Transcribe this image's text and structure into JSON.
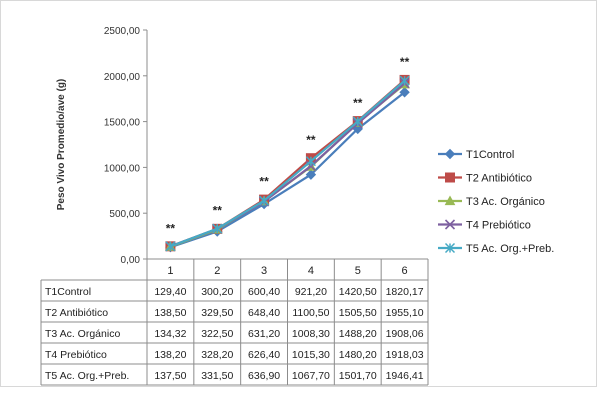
{
  "chart_data": {
    "type": "line",
    "ylabel": "Peso Vivo Promedio/ave (g)",
    "xlabel": "",
    "ylim": [
      0,
      2500
    ],
    "y_ticks": [
      "0,00",
      "500,00",
      "1000,00",
      "1500,00",
      "2000,00",
      "2500,00"
    ],
    "categories": [
      "1",
      "2",
      "3",
      "4",
      "5",
      "6"
    ],
    "significance_marks": [
      "**",
      "**",
      "**",
      "**",
      "**",
      "**"
    ],
    "legend_position": "right",
    "grid": false,
    "series": [
      {
        "name": "T1Control",
        "color": "#4a7ebb",
        "marker": "diamond",
        "values": [
          129.4,
          300.2,
          600.4,
          921.2,
          1420.5,
          1820.17
        ],
        "labels": [
          "129,40",
          "300,20",
          "600,40",
          "921,20",
          "1420,50",
          "1820,17"
        ]
      },
      {
        "name": "T2 Antibiótico",
        "color": "#be4b48",
        "marker": "square",
        "values": [
          138.5,
          329.5,
          648.4,
          1100.5,
          1505.5,
          1955.1
        ],
        "labels": [
          "138,50",
          "329,50",
          "648,40",
          "1100,50",
          "1505,50",
          "1955,10"
        ]
      },
      {
        "name": "T3 Ac. Orgánico",
        "color": "#98b954",
        "marker": "triangle",
        "values": [
          134.32,
          322.5,
          631.2,
          1008.3,
          1488.2,
          1908.06
        ],
        "labels": [
          "134,32",
          "322,50",
          "631,20",
          "1008,30",
          "1488,20",
          "1908,06"
        ]
      },
      {
        "name": "T4 Prebiótico",
        "color": "#7d60a0",
        "marker": "x",
        "values": [
          138.2,
          328.2,
          626.4,
          1015.3,
          1480.2,
          1918.03
        ],
        "labels": [
          "138,20",
          "328,20",
          "626,40",
          "1015,30",
          "1480,20",
          "1918,03"
        ]
      },
      {
        "name": "T5 Ac. Org.+Preb.",
        "color": "#46aac5",
        "marker": "star",
        "values": [
          137.5,
          331.5,
          636.9,
          1067.7,
          1501.7,
          1946.41
        ],
        "labels": [
          "137,50",
          "331,50",
          "636,90",
          "1067,70",
          "1501,70",
          "1946,41"
        ]
      }
    ]
  }
}
